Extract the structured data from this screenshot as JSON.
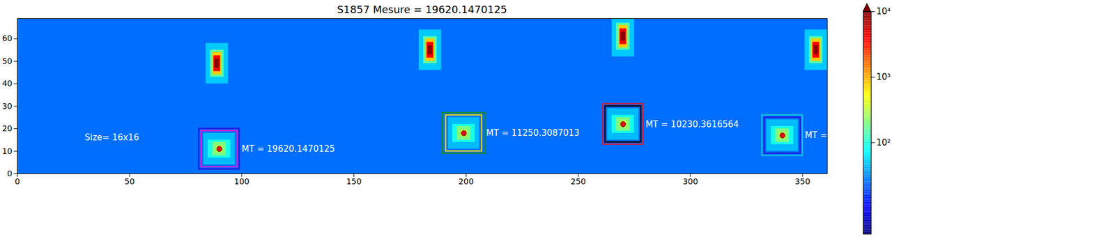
{
  "chart_data": {
    "type": "heatmap",
    "title": "S1857 Mesure = 19620.1470125",
    "xlim": [
      0,
      361
    ],
    "ylim": [
      0,
      69
    ],
    "xticks": [
      0,
      50,
      100,
      150,
      200,
      250,
      300,
      350
    ],
    "yticks": [
      0,
      10,
      20,
      30,
      40,
      50,
      60
    ],
    "background": 25,
    "cells": [
      {
        "x1": 84,
        "x2": 94,
        "y1": 40,
        "y2": 58,
        "value": 50
      },
      {
        "x1": 86,
        "x2": 92,
        "y1": 43,
        "y2": 55,
        "value": 150
      },
      {
        "x1": 87,
        "x2": 91,
        "y1": 44,
        "y2": 54,
        "value": 800
      },
      {
        "x1": 87.5,
        "x2": 90.5,
        "y1": 45.5,
        "y2": 52.5,
        "value": 4000
      },
      {
        "x1": 88,
        "x2": 90,
        "y1": 47,
        "y2": 51,
        "value": 9000
      },
      {
        "x1": 179,
        "x2": 189,
        "y1": 46,
        "y2": 64,
        "value": 50
      },
      {
        "x1": 181,
        "x2": 187,
        "y1": 49,
        "y2": 61,
        "value": 150
      },
      {
        "x1": 182,
        "x2": 186,
        "y1": 50,
        "y2": 60,
        "value": 800
      },
      {
        "x1": 182.5,
        "x2": 185.5,
        "y1": 51.5,
        "y2": 58.5,
        "value": 4000
      },
      {
        "x1": 183,
        "x2": 185,
        "y1": 53,
        "y2": 57,
        "value": 9000
      },
      {
        "x1": 265,
        "x2": 275,
        "y1": 52,
        "y2": 70,
        "value": 50
      },
      {
        "x1": 267,
        "x2": 273,
        "y1": 55,
        "y2": 67,
        "value": 150
      },
      {
        "x1": 268,
        "x2": 272,
        "y1": 56,
        "y2": 66,
        "value": 800
      },
      {
        "x1": 268.5,
        "x2": 271.5,
        "y1": 57.5,
        "y2": 64.5,
        "value": 4000
      },
      {
        "x1": 269,
        "x2": 271,
        "y1": 59,
        "y2": 63,
        "value": 9000
      },
      {
        "x1": 351,
        "x2": 361,
        "y1": 46,
        "y2": 64,
        "value": 50
      },
      {
        "x1": 353,
        "x2": 359,
        "y1": 49,
        "y2": 61,
        "value": 150
      },
      {
        "x1": 354,
        "x2": 358,
        "y1": 50,
        "y2": 60,
        "value": 800
      },
      {
        "x1": 354.5,
        "x2": 357.5,
        "y1": 51.5,
        "y2": 58.5,
        "value": 4000
      },
      {
        "x1": 355,
        "x2": 357,
        "y1": 53,
        "y2": 57,
        "value": 9000
      },
      {
        "x1": 83,
        "x2": 97,
        "y1": 4,
        "y2": 18,
        "value": 45
      },
      {
        "x1": 85,
        "x2": 95,
        "y1": 7,
        "y2": 15,
        "value": 90
      },
      {
        "x1": 87,
        "x2": 93,
        "y1": 8,
        "y2": 14,
        "value": 200
      },
      {
        "x1": 88.5,
        "x2": 91.5,
        "y1": 9.5,
        "y2": 12.5,
        "value": 350
      },
      {
        "x1": 192,
        "x2": 206,
        "y1": 11,
        "y2": 25,
        "value": 45
      },
      {
        "x1": 194,
        "x2": 204,
        "y1": 14,
        "y2": 22,
        "value": 90
      },
      {
        "x1": 196,
        "x2": 202,
        "y1": 15,
        "y2": 21,
        "value": 200
      },
      {
        "x1": 197.5,
        "x2": 200.5,
        "y1": 16.5,
        "y2": 19.5,
        "value": 350
      },
      {
        "x1": 263,
        "x2": 277,
        "y1": 15,
        "y2": 29,
        "value": 45
      },
      {
        "x1": 265,
        "x2": 275,
        "y1": 18,
        "y2": 26,
        "value": 90
      },
      {
        "x1": 267,
        "x2": 273,
        "y1": 19,
        "y2": 25,
        "value": 200
      },
      {
        "x1": 268.5,
        "x2": 271.5,
        "y1": 20.5,
        "y2": 23.5,
        "value": 350
      },
      {
        "x1": 334,
        "x2": 348,
        "y1": 10,
        "y2": 24,
        "value": 45
      },
      {
        "x1": 336,
        "x2": 346,
        "y1": 13,
        "y2": 21,
        "value": 90
      },
      {
        "x1": 338,
        "x2": 344,
        "y1": 14,
        "y2": 20,
        "value": 200
      },
      {
        "x1": 339.5,
        "x2": 342.5,
        "y1": 15.5,
        "y2": 18.5,
        "value": 350
      }
    ],
    "colorbar": {
      "range": [
        4,
        10000
      ],
      "ticks": [
        {
          "value": 100,
          "label": "10²"
        },
        {
          "value": 1000,
          "label": "10³"
        },
        {
          "value": 10000,
          "label": "10⁴"
        }
      ]
    },
    "boxes": [
      {
        "x1": 81,
        "x2": 99,
        "y1": 2,
        "y2": 20,
        "color": "#1f1fe0"
      },
      {
        "x1": 82,
        "x2": 98,
        "y1": 3,
        "y2": 19,
        "color": "#d020d0"
      },
      {
        "x1": 189.5,
        "x2": 208.5,
        "y1": 9,
        "y2": 27,
        "color": "#1a8a2a"
      },
      {
        "x1": 191,
        "x2": 207,
        "y1": 10,
        "y2": 26,
        "color": "#d8d020"
      },
      {
        "x1": 261,
        "x2": 279,
        "y1": 13,
        "y2": 31,
        "color": "#c0204a"
      },
      {
        "x1": 262,
        "x2": 278,
        "y1": 14,
        "y2": 30,
        "color": "#000000"
      },
      {
        "x1": 332,
        "x2": 350,
        "y1": 8,
        "y2": 26,
        "color": "#10c0e0"
      },
      {
        "x1": 333,
        "x2": 349,
        "y1": 9,
        "y2": 25,
        "color": "#1f1fe0"
      }
    ],
    "points": {
      "x": [
        90,
        199,
        270,
        341
      ],
      "y": [
        11,
        18,
        22,
        17
      ],
      "color": "#e01010"
    },
    "annotations": [
      {
        "text": "MT = 19620.1470125",
        "x": 100,
        "y": 11
      },
      {
        "text": "MT = 11250.3087013",
        "x": 209,
        "y": 18
      },
      {
        "text": "MT = 10230.3616564",
        "x": 280,
        "y": 22
      },
      {
        "text": "MT =",
        "x": 351,
        "y": 17
      },
      {
        "text": "Size= 16x16",
        "x": 30,
        "y": 16
      }
    ]
  }
}
